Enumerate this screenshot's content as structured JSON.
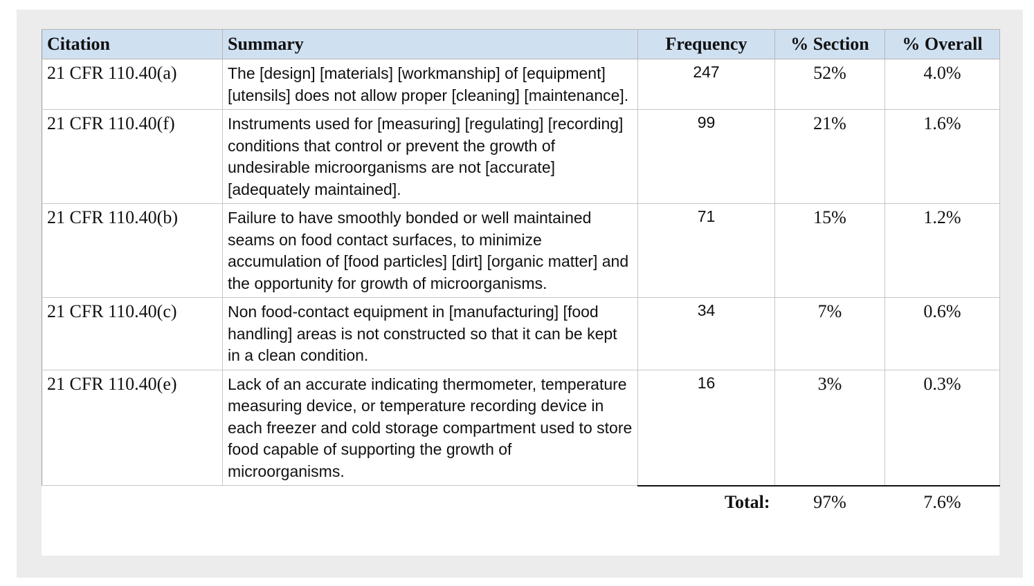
{
  "table": {
    "headers": {
      "citation": "Citation",
      "summary": "Summary",
      "frequency": "Frequency",
      "pct_section": "% Section",
      "pct_overall": "% Overall"
    },
    "rows": [
      {
        "citation": "21 CFR 110.40(a)",
        "summary": "The [design] [materials] [workmanship] of [equipment] [utensils] does not allow proper [cleaning] [maintenance].",
        "frequency": "247",
        "pct_section": "52%",
        "pct_overall": "4.0%"
      },
      {
        "citation": "21 CFR 110.40(f)",
        "summary": "Instruments used for [measuring] [regulating] [recording] conditions that control or prevent the growth of undesirable microorganisms are not [accurate] [adequately maintained].",
        "frequency": "99",
        "pct_section": "21%",
        "pct_overall": "1.6%"
      },
      {
        "citation": "21 CFR 110.40(b)",
        "summary": "Failure to have smoothly bonded or well maintained seams on food contact surfaces, to minimize accumulation of [food particles] [dirt] [organic matter] and the opportunity for growth of microorganisms.",
        "frequency": "71",
        "pct_section": "15%",
        "pct_overall": "1.2%"
      },
      {
        "citation": "21 CFR 110.40(c)",
        "summary": "Non food-contact equipment in [manufacturing] [food handling] areas is not constructed so that it can be kept in a clean condition.",
        "frequency": "34",
        "pct_section": "7%",
        "pct_overall": "0.6%"
      },
      {
        "citation": "21 CFR 110.40(e)",
        "summary": "Lack of an accurate indicating thermometer, temperature measuring device, or temperature recording device in each freezer and cold storage compartment used to store food capable of supporting the growth of microorganisms.",
        "frequency": "16",
        "pct_section": "3%",
        "pct_overall": "0.3%"
      }
    ],
    "total": {
      "label": "Total:",
      "pct_section": "97%",
      "pct_overall": "7.6%"
    }
  }
}
